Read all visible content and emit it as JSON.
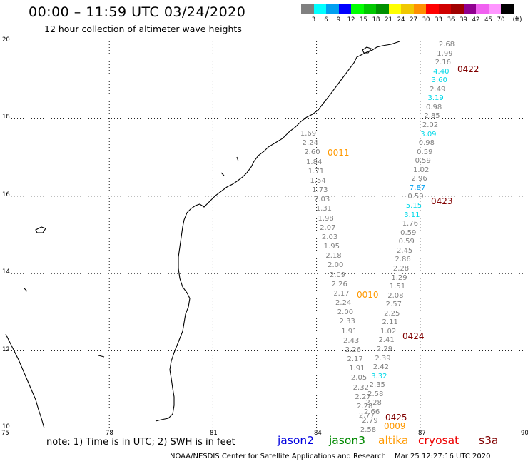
{
  "header": {
    "title": "00:00 – 11:59 UTC 03/24/2020",
    "subtitle": "12 hour collection of altimeter wave heights"
  },
  "legend": {
    "colors": [
      "#808080",
      "#00ffff",
      "#00a0f0",
      "#0000ff",
      "#00ff00",
      "#00c800",
      "#009000",
      "#ffff00",
      "#f0c800",
      "#ff9000",
      "#ff0000",
      "#d00000",
      "#a00000",
      "#900090",
      "#f060f0",
      "#ff96ff",
      "#000000"
    ],
    "labels": [
      "3",
      "6",
      "9",
      "12",
      "15",
      "18",
      "21",
      "24",
      "27",
      "30",
      "33",
      "36",
      "39",
      "42",
      "45",
      "70",
      "(ft)"
    ]
  },
  "axes": {
    "lat_labels": [
      "20",
      "18",
      "16",
      "14",
      "12",
      "10"
    ],
    "lon_labels": [
      "75",
      "78",
      "81",
      "84",
      "87",
      "90"
    ]
  },
  "passes": [
    {
      "id": "0422",
      "color": "#800000"
    },
    {
      "id": "0423",
      "color": "#800000"
    },
    {
      "id": "0424",
      "color": "#800000"
    },
    {
      "id": "0425",
      "color": "#800000"
    },
    {
      "id": "0011",
      "color": "#ff9900"
    },
    {
      "id": "0010",
      "color": "#ff9900"
    },
    {
      "id": "0009",
      "color": "#ff9900"
    }
  ],
  "wave_heights_ft": {
    "track_0422_0425": [
      "2.68",
      "1.99",
      "2.16",
      "4.40",
      "3.60",
      "2.49",
      "3.19",
      "0.98",
      "2.85",
      "2.02",
      "3.09",
      "0.98",
      "0.59",
      "0.59",
      "1.02",
      "2.96",
      "7.87",
      "0.59",
      "5.15",
      "3.11",
      "1.76",
      "0.59",
      "0.59",
      "2.45",
      "2.86",
      "2.28",
      "1.29",
      "1.51",
      "2.08",
      "2.57",
      "2.25",
      "2.11",
      "1.02",
      "2.41",
      "2.29",
      "2.39",
      "2.42",
      "3.32",
      "2.35",
      "2.58",
      "2.28",
      "2.66",
      "2.79",
      "2.58"
    ],
    "track_0011_0009": [
      "1.69",
      "2.24",
      "2.60",
      "1.84",
      "1.71",
      "1.54",
      "1.73",
      "2.03",
      "1.31",
      "1.98",
      "2.07",
      "2.03",
      "1.95",
      "2.18",
      "2.00",
      "2.09",
      "2.26",
      "2.17",
      "2.24",
      "2.00",
      "2.33",
      "1.91",
      "2.43",
      "2.26",
      "2.17",
      "1.91",
      "2.05",
      "2.32",
      "2.27",
      "2.28",
      "2.77"
    ]
  },
  "footer": {
    "note": "note:  1) Time is in UTC;  2) SWH is in feet",
    "satellites": [
      {
        "name": "jason2",
        "color": "#0000e0"
      },
      {
        "name": "jason3",
        "color": "#008800"
      },
      {
        "name": "altika",
        "color": "#ff9900"
      },
      {
        "name": "cryosat",
        "color": "#ee0000"
      },
      {
        "name": "s3a",
        "color": "#800000"
      }
    ],
    "credit": "NOAA/NESDIS Center for Satellite Applications and Research",
    "timestamp": "Mar 25 12:27:16 UTC 2020"
  }
}
